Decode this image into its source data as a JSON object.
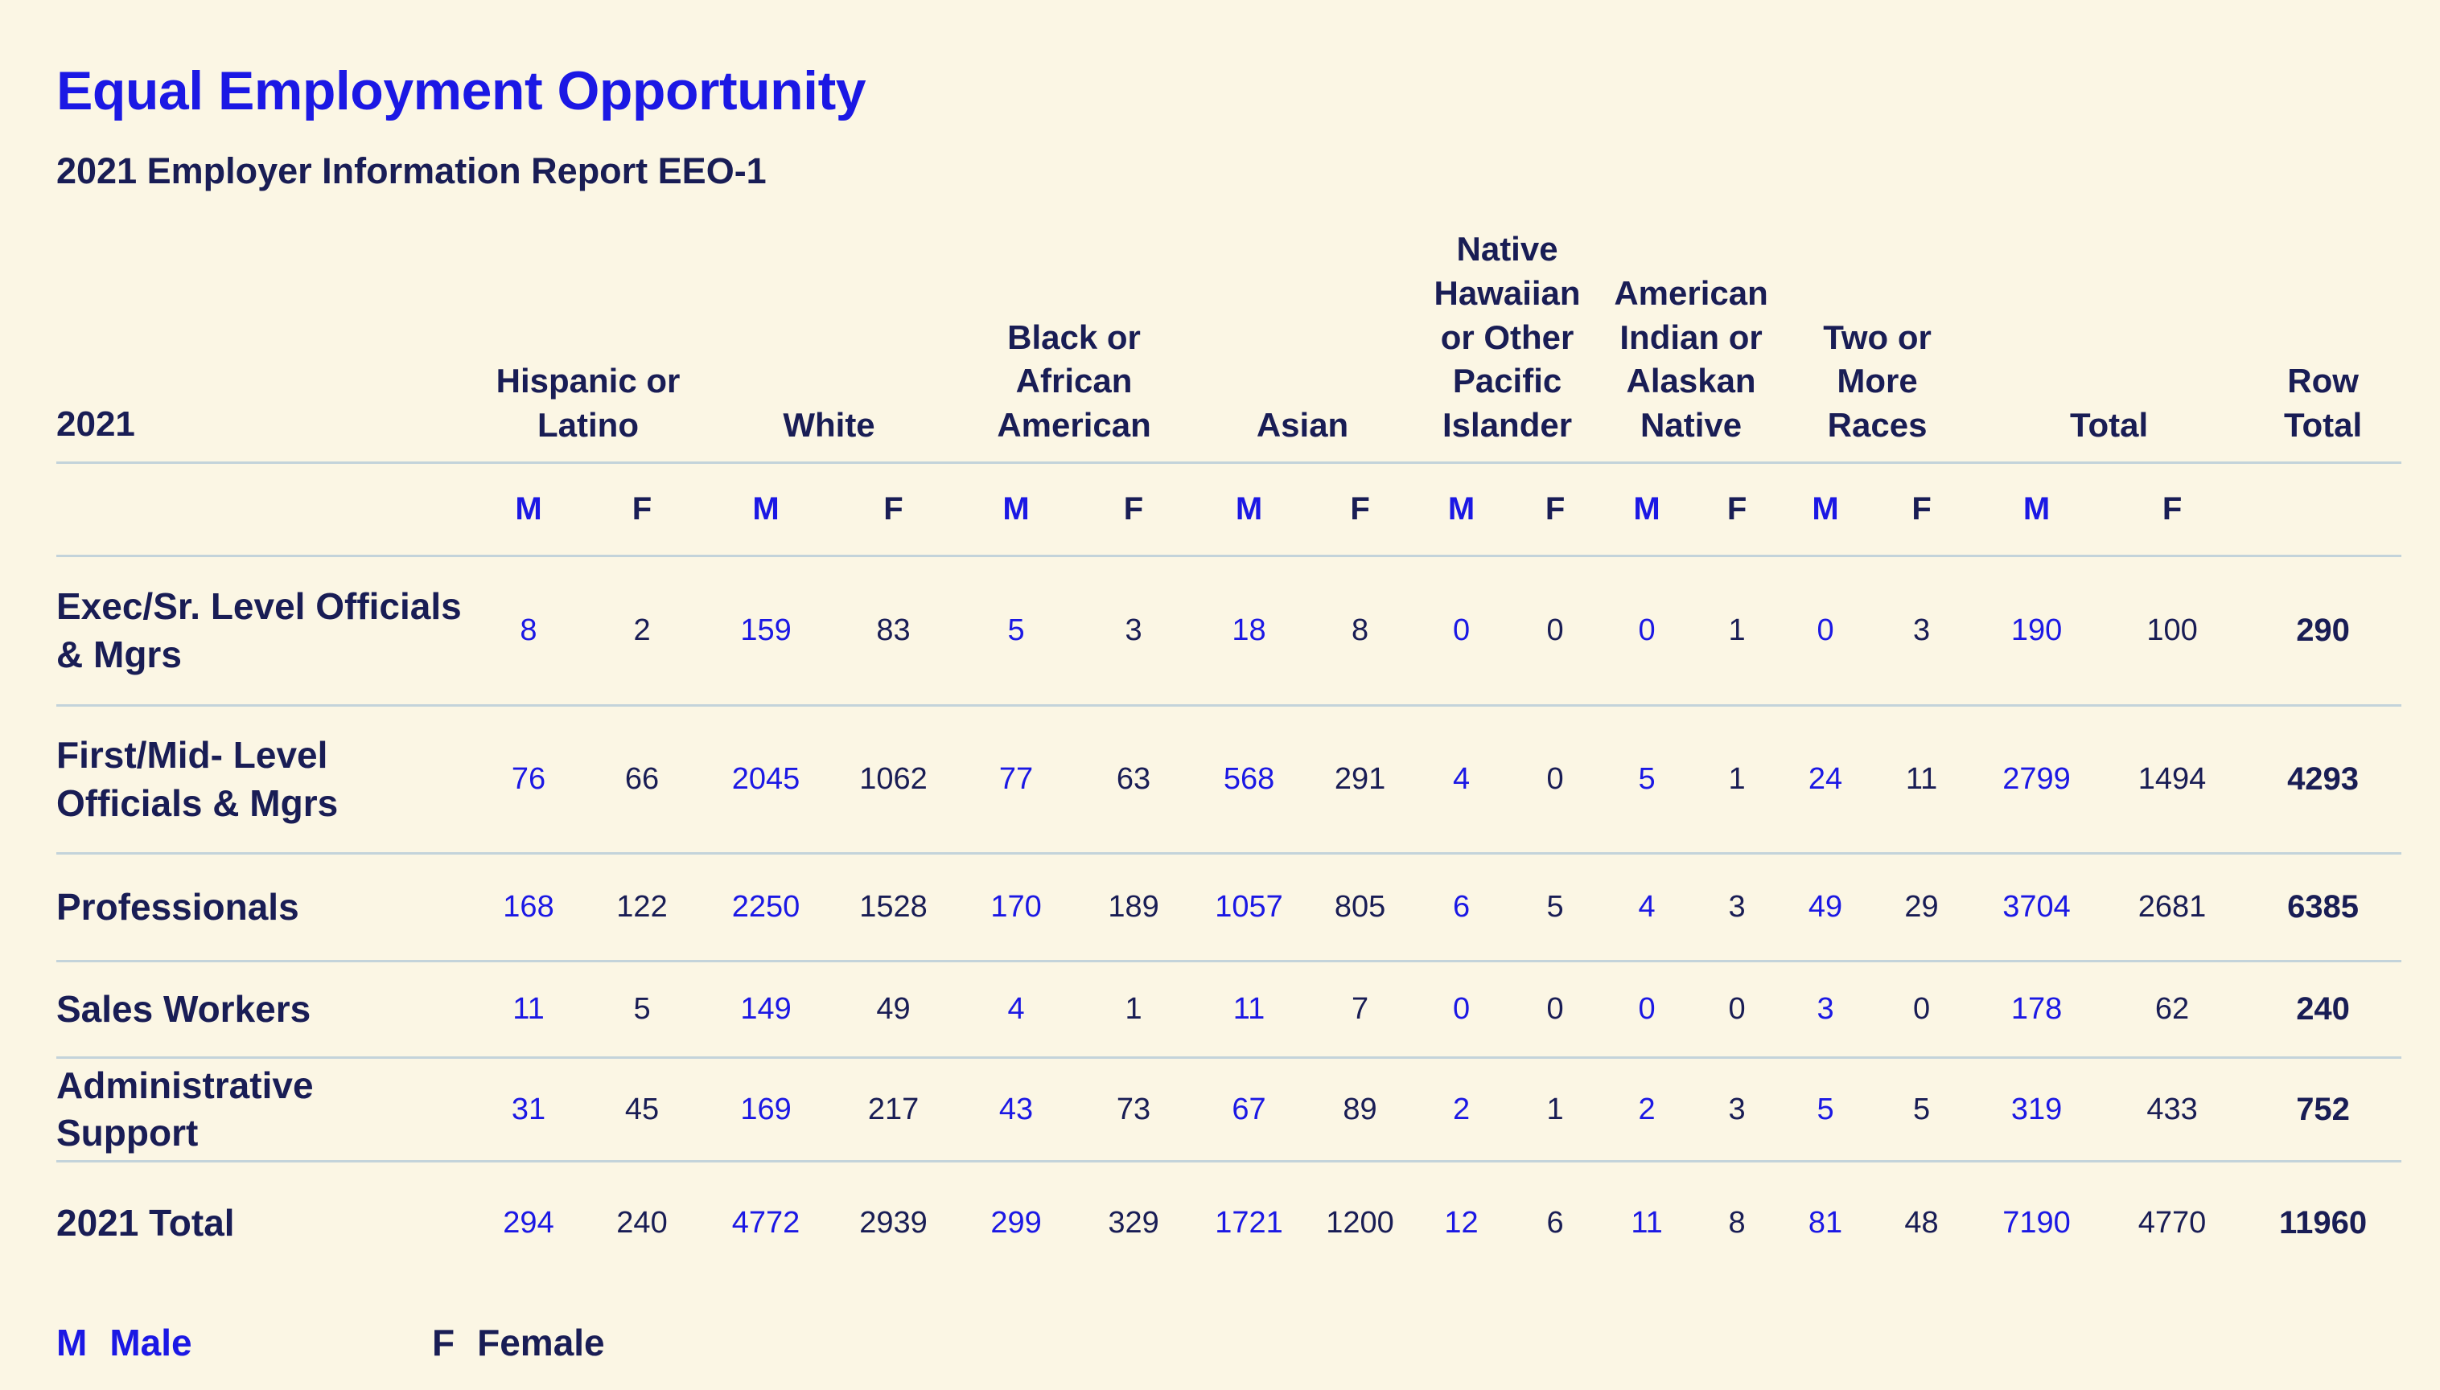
{
  "header": {
    "title": "Equal Employment Opportunity",
    "subtitle": "2021 Employer Information Report EEO-1"
  },
  "colors": {
    "background": "#FBF6E4",
    "accent_blue": "#1B18E4",
    "navy": "#191D55",
    "divider": "#C3D3DA"
  },
  "table": {
    "year_label": "2021",
    "row_total_label": "Row\nTotal",
    "male_abbr": "M",
    "female_abbr": "F",
    "groups": [
      {
        "label": "Hispanic or\nLatino"
      },
      {
        "label": "White"
      },
      {
        "label": "Black or\nAfrican\nAmerican"
      },
      {
        "label": "Asian"
      },
      {
        "label": "Native\nHawaiian\nor Other\nPacific\nIslander"
      },
      {
        "label": "American\nIndian or\nAlaskan\nNative"
      },
      {
        "label": "Two or\nMore\nRaces"
      },
      {
        "label": "Total"
      }
    ],
    "rows": [
      {
        "label": "Exec/Sr. Level Officials\n& Mgrs",
        "values": [
          8,
          2,
          159,
          83,
          5,
          3,
          18,
          8,
          0,
          0,
          0,
          1,
          0,
          3,
          190,
          100
        ],
        "row_total": 290
      },
      {
        "label": "First/Mid- Level\nOfficials & Mgrs",
        "values": [
          76,
          66,
          2045,
          1062,
          77,
          63,
          568,
          291,
          4,
          0,
          5,
          1,
          24,
          11,
          2799,
          1494
        ],
        "row_total": 4293
      },
      {
        "label": "Professionals",
        "values": [
          168,
          122,
          2250,
          1528,
          170,
          189,
          1057,
          805,
          6,
          5,
          4,
          3,
          49,
          29,
          3704,
          2681
        ],
        "row_total": 6385
      },
      {
        "label": "Sales Workers",
        "values": [
          11,
          5,
          149,
          49,
          4,
          1,
          11,
          7,
          0,
          0,
          0,
          0,
          3,
          0,
          178,
          62
        ],
        "row_total": 240
      },
      {
        "label": "Administrative\nSupport",
        "values": [
          31,
          45,
          169,
          217,
          43,
          73,
          67,
          89,
          2,
          1,
          2,
          3,
          5,
          5,
          319,
          433
        ],
        "row_total": 752
      },
      {
        "label": "2021 Total",
        "values": [
          294,
          240,
          4772,
          2939,
          299,
          329,
          1721,
          1200,
          12,
          6,
          11,
          8,
          81,
          48,
          7190,
          4770
        ],
        "row_total": 11960
      }
    ]
  },
  "legend": {
    "male_abbr": "M",
    "male_label": "Male",
    "female_abbr": "F",
    "female_label": "Female"
  }
}
